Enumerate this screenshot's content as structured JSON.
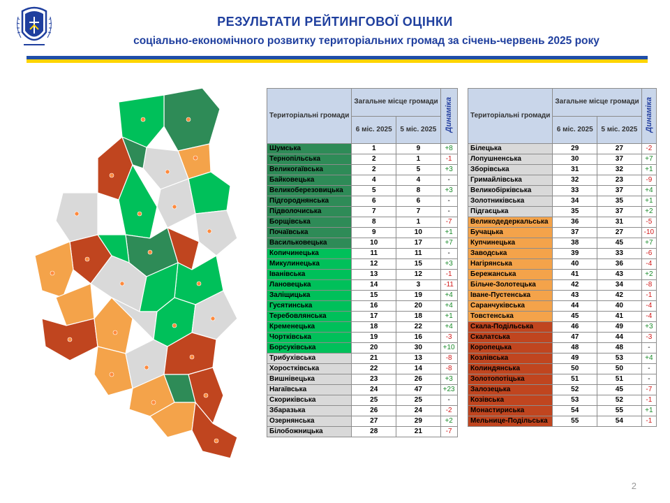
{
  "header": {
    "title": "РЕЗУЛЬТАТИ РЕЙТИНГОВОЇ ОЦІНКИ",
    "subtitle": "соціально-економічного розвитку територіальних громад за січень-червень 2025 року"
  },
  "table_headers": {
    "communities": "Територіальні громади",
    "overall": "Загальне місце громади",
    "m6": "6 міс. 2025",
    "m5": "5 міс. 2025",
    "dynamics": "Динаміка"
  },
  "colors": {
    "g1": "#2e8b57",
    "g2": "#00c05a",
    "g3": "#d9d9d9",
    "g4": "#f4a34a",
    "g5": "#c0451f"
  },
  "left_rows": [
    {
      "name": "Шумська",
      "m6": "1",
      "m5": "9",
      "dyn": "+8",
      "g": "g1"
    },
    {
      "name": "Тернопільська",
      "m6": "2",
      "m5": "1",
      "dyn": "-1",
      "g": "g1"
    },
    {
      "name": "Великогаївська",
      "m6": "2",
      "m5": "5",
      "dyn": "+3",
      "g": "g1"
    },
    {
      "name": "Байковецька",
      "m6": "4",
      "m5": "4",
      "dyn": "-",
      "g": "g1"
    },
    {
      "name": "Великоберезовицька",
      "m6": "5",
      "m5": "8",
      "dyn": "+3",
      "g": "g1"
    },
    {
      "name": "Підгороднянська",
      "m6": "6",
      "m5": "6",
      "dyn": "-",
      "g": "g1"
    },
    {
      "name": "Підволочиська",
      "m6": "7",
      "m5": "7",
      "dyn": "-",
      "g": "g1"
    },
    {
      "name": "Борщівська",
      "m6": "8",
      "m5": "1",
      "dyn": "-7",
      "g": "g1"
    },
    {
      "name": "Почаївська",
      "m6": "9",
      "m5": "10",
      "dyn": "+1",
      "g": "g1"
    },
    {
      "name": "Васильковецька",
      "m6": "10",
      "m5": "17",
      "dyn": "+7",
      "g": "g1"
    },
    {
      "name": "Копичинецька",
      "m6": "11",
      "m5": "11",
      "dyn": "-",
      "g": "g2"
    },
    {
      "name": "Микулинецька",
      "m6": "12",
      "m5": "15",
      "dyn": "+3",
      "g": "g2"
    },
    {
      "name": "Іванівська",
      "m6": "13",
      "m5": "12",
      "dyn": "-1",
      "g": "g2"
    },
    {
      "name": "Лановецька",
      "m6": "14",
      "m5": "3",
      "dyn": "-11",
      "g": "g2"
    },
    {
      "name": "Заліщицька",
      "m6": "15",
      "m5": "19",
      "dyn": "+4",
      "g": "g2"
    },
    {
      "name": "Гусятинська",
      "m6": "16",
      "m5": "20",
      "dyn": "+4",
      "g": "g2"
    },
    {
      "name": "Теребовлянська",
      "m6": "17",
      "m5": "18",
      "dyn": "+1",
      "g": "g2"
    },
    {
      "name": "Кременецька",
      "m6": "18",
      "m5": "22",
      "dyn": "+4",
      "g": "g2"
    },
    {
      "name": "Чортківська",
      "m6": "19",
      "m5": "16",
      "dyn": "-3",
      "g": "g2"
    },
    {
      "name": "Борсуківська",
      "m6": "20",
      "m5": "30",
      "dyn": "+10",
      "g": "g2"
    },
    {
      "name": "Трибухівська",
      "m6": "21",
      "m5": "13",
      "dyn": "-8",
      "g": "g3"
    },
    {
      "name": "Хоростківська",
      "m6": "22",
      "m5": "14",
      "dyn": "-8",
      "g": "g3"
    },
    {
      "name": "Вишнівецька",
      "m6": "23",
      "m5": "26",
      "dyn": "+3",
      "g": "g3"
    },
    {
      "name": "Наraївська",
      "m6": "24",
      "m5": "47",
      "dyn": "+23",
      "g": "g3"
    },
    {
      "name": "Скориківська",
      "m6": "25",
      "m5": "25",
      "dyn": "-",
      "g": "g3"
    },
    {
      "name": "Збаразька",
      "m6": "26",
      "m5": "24",
      "dyn": "-2",
      "g": "g3"
    },
    {
      "name": "Озернянська",
      "m6": "27",
      "m5": "29",
      "dyn": "+2",
      "g": "g3"
    },
    {
      "name": "Білобожницька",
      "m6": "28",
      "m5": "21",
      "dyn": "-7",
      "g": "g3"
    }
  ],
  "right_rows": [
    {
      "name": "Білецька",
      "m6": "29",
      "m5": "27",
      "dyn": "-2",
      "g": "g3"
    },
    {
      "name": "Лопушненська",
      "m6": "30",
      "m5": "37",
      "dyn": "+7",
      "g": "g3"
    },
    {
      "name": "Зборівська",
      "m6": "31",
      "m5": "32",
      "dyn": "+1",
      "g": "g3"
    },
    {
      "name": "Гримайлівська",
      "m6": "32",
      "m5": "23",
      "dyn": "-9",
      "g": "g3"
    },
    {
      "name": "Великобірківська",
      "m6": "33",
      "m5": "37",
      "dyn": "+4",
      "g": "g3"
    },
    {
      "name": "Золотниківська",
      "m6": "34",
      "m5": "35",
      "dyn": "+1",
      "g": "g3"
    },
    {
      "name": "Підгаєцька",
      "m6": "35",
      "m5": "37",
      "dyn": "+2",
      "g": "g3"
    },
    {
      "name": "Великодедеркальська",
      "m6": "36",
      "m5": "31",
      "dyn": "-5",
      "g": "g4"
    },
    {
      "name": "Бучацька",
      "m6": "37",
      "m5": "27",
      "dyn": "-10",
      "g": "g4"
    },
    {
      "name": "Купчинецька",
      "m6": "38",
      "m5": "45",
      "dyn": "+7",
      "g": "g4"
    },
    {
      "name": "Заводська",
      "m6": "39",
      "m5": "33",
      "dyn": "-6",
      "g": "g4"
    },
    {
      "name": "Нагірянська",
      "m6": "40",
      "m5": "36",
      "dyn": "-4",
      "g": "g4"
    },
    {
      "name": "Бережанська",
      "m6": "41",
      "m5": "43",
      "dyn": "+2",
      "g": "g4"
    },
    {
      "name": "Більче-Золотецька",
      "m6": "42",
      "m5": "34",
      "dyn": "-8",
      "g": "g4"
    },
    {
      "name": "Іване-Пустенська",
      "m6": "43",
      "m5": "42",
      "dyn": "-1",
      "g": "g4"
    },
    {
      "name": "Саранчуківська",
      "m6": "44",
      "m5": "40",
      "dyn": "-4",
      "g": "g4"
    },
    {
      "name": "Товстенська",
      "m6": "45",
      "m5": "41",
      "dyn": "-4",
      "g": "g4"
    },
    {
      "name": "Скала-Подільська",
      "m6": "46",
      "m5": "49",
      "dyn": "+3",
      "g": "g5"
    },
    {
      "name": "Скалатська",
      "m6": "47",
      "m5": "44",
      "dyn": "-3",
      "g": "g5"
    },
    {
      "name": "Коропецька",
      "m6": "48",
      "m5": "48",
      "dyn": "-",
      "g": "g5"
    },
    {
      "name": "Козлівська",
      "m6": "49",
      "m5": "53",
      "dyn": "+4",
      "g": "g5"
    },
    {
      "name": "Колиндянська",
      "m6": "50",
      "m5": "50",
      "dyn": "-",
      "g": "g5"
    },
    {
      "name": "Золотопотіцька",
      "m6": "51",
      "m5": "51",
      "dyn": "-",
      "g": "g5"
    },
    {
      "name": "Залозецька",
      "m6": "52",
      "m5": "45",
      "dyn": "-7",
      "g": "g5"
    },
    {
      "name": "Козівська",
      "m6": "53",
      "m5": "52",
      "dyn": "-1",
      "g": "g5"
    },
    {
      "name": "Монастириська",
      "m6": "54",
      "m5": "55",
      "dyn": "+1",
      "g": "g5"
    },
    {
      "name": "Мельнице-Подільська",
      "m6": "55",
      "m5": "54",
      "dyn": "-1",
      "g": "g5"
    }
  ],
  "page_number": "2"
}
